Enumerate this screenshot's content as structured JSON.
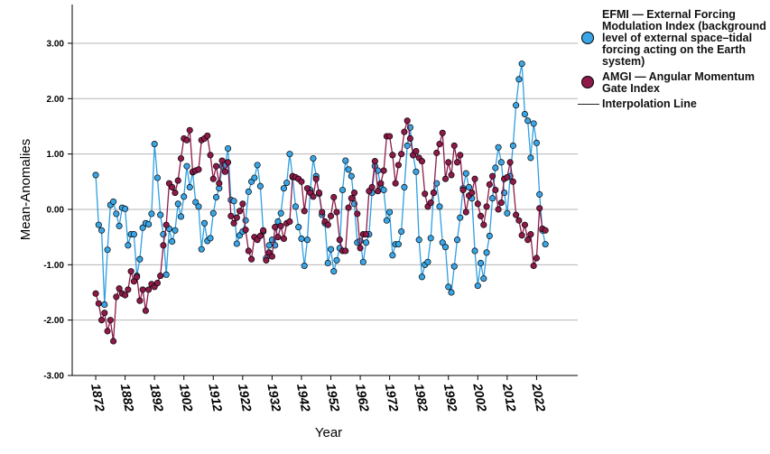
{
  "chart_data": {
    "type": "line",
    "x_label": "Year",
    "y_label": "Mean-Anomalies",
    "x": [
      1872,
      1873,
      1874,
      1875,
      1876,
      1877,
      1878,
      1879,
      1880,
      1881,
      1882,
      1883,
      1884,
      1885,
      1886,
      1887,
      1888,
      1889,
      1890,
      1891,
      1892,
      1893,
      1894,
      1895,
      1896,
      1897,
      1898,
      1899,
      1900,
      1901,
      1902,
      1903,
      1904,
      1905,
      1906,
      1907,
      1908,
      1909,
      1910,
      1911,
      1912,
      1913,
      1914,
      1915,
      1916,
      1917,
      1918,
      1919,
      1920,
      1921,
      1922,
      1923,
      1924,
      1925,
      1926,
      1927,
      1928,
      1929,
      1930,
      1931,
      1932,
      1933,
      1934,
      1935,
      1936,
      1937,
      1938,
      1939,
      1940,
      1941,
      1942,
      1943,
      1944,
      1945,
      1946,
      1947,
      1948,
      1949,
      1950,
      1951,
      1952,
      1953,
      1954,
      1955,
      1956,
      1957,
      1958,
      1959,
      1960,
      1961,
      1962,
      1963,
      1964,
      1965,
      1966,
      1967,
      1968,
      1969,
      1970,
      1971,
      1972,
      1973,
      1974,
      1975,
      1976,
      1977,
      1978,
      1979,
      1980,
      1981,
      1982,
      1983,
      1984,
      1985,
      1986,
      1987,
      1988,
      1989,
      1990,
      1991,
      1992,
      1993,
      1994,
      1995,
      1996,
      1997,
      1998,
      1999,
      2000,
      2001,
      2002,
      2003,
      2004,
      2005,
      2006,
      2007,
      2008,
      2009,
      2010,
      2011,
      2012,
      2013,
      2014,
      2015,
      2016,
      2017,
      2018,
      2019,
      2020,
      2021,
      2022,
      2023,
      2024,
      2025
    ],
    "series": [
      {
        "name": "EFMI — External Forcing Modulation Index (background level of external space–tidal forcing acting on the Earth system)",
        "color": "#3aa6e6",
        "line_color": "#2f9fe0",
        "values": [
          0.62,
          -0.28,
          -0.38,
          -1.72,
          -0.73,
          0.08,
          0.14,
          -0.08,
          -0.3,
          0.03,
          0.01,
          -0.65,
          -0.45,
          -0.45,
          -1.2,
          -0.9,
          -0.33,
          -0.25,
          -0.27,
          -0.08,
          1.18,
          0.57,
          -0.1,
          -0.45,
          -1.18,
          -0.35,
          -0.58,
          -0.38,
          0.1,
          -0.13,
          0.23,
          0.78,
          0.4,
          0.67,
          0.13,
          0.05,
          -0.72,
          -0.25,
          -0.57,
          -0.52,
          -0.07,
          0.22,
          0.38,
          0.78,
          0.8,
          1.1,
          0.17,
          0.15,
          -0.62,
          -0.47,
          -0.4,
          -0.2,
          0.32,
          0.5,
          0.57,
          0.8,
          0.42,
          -0.4,
          -0.88,
          -0.65,
          -0.55,
          -0.65,
          -0.22,
          -0.07,
          0.38,
          0.48,
          1.0,
          0.58,
          0.05,
          -0.32,
          -0.53,
          -1.02,
          -0.55,
          0.35,
          0.92,
          0.6,
          0.28,
          -0.1,
          -0.25,
          -0.97,
          -0.72,
          -1.12,
          -0.92,
          -0.7,
          0.35,
          0.88,
          0.72,
          0.6,
          0.1,
          -0.6,
          -0.57,
          -0.95,
          -0.6,
          -0.45,
          0.3,
          0.78,
          0.7,
          0.4,
          0.35,
          -0.2,
          -0.05,
          -0.83,
          -0.63,
          -0.63,
          -0.4,
          0.4,
          1.15,
          1.48,
          0.98,
          0.68,
          -0.55,
          -1.22,
          -1.0,
          -0.95,
          -0.52,
          0.3,
          0.47,
          0.05,
          -0.6,
          -0.68,
          -1.4,
          -1.5,
          -1.03,
          -0.55,
          -0.15,
          0.38,
          0.65,
          0.4,
          0.2,
          -0.75,
          -1.38,
          -0.97,
          -1.25,
          -0.78,
          -0.48,
          0.2,
          0.75,
          1.12,
          0.85,
          0.3,
          -0.07,
          0.6,
          1.15,
          1.88,
          2.35,
          2.63,
          1.72,
          1.6,
          0.93,
          1.55,
          1.2,
          0.27,
          -0.38,
          -0.63
        ]
      },
      {
        "name": "AMGI — Angular Momentum Gate Index",
        "color": "#8e1a4a",
        "line_color": "#8e1a4a",
        "values": [
          -1.52,
          -1.7,
          -2.0,
          -1.87,
          -2.2,
          -2.0,
          -2.38,
          -1.58,
          -1.43,
          -1.52,
          -1.55,
          -1.45,
          -1.12,
          -1.3,
          -1.22,
          -1.65,
          -1.45,
          -1.83,
          -1.45,
          -1.35,
          -1.4,
          -1.33,
          -1.2,
          -0.65,
          -0.28,
          0.47,
          0.4,
          0.3,
          0.52,
          0.92,
          1.28,
          1.25,
          1.43,
          0.68,
          0.7,
          0.72,
          1.25,
          1.28,
          1.33,
          0.98,
          0.55,
          0.78,
          0.47,
          0.88,
          0.68,
          0.85,
          -0.12,
          -0.25,
          -0.15,
          -0.03,
          0.1,
          -0.37,
          -0.75,
          -0.9,
          -0.5,
          -0.55,
          -0.48,
          -0.38,
          -0.92,
          -0.78,
          -0.85,
          -0.32,
          -0.5,
          -0.3,
          -0.53,
          -0.25,
          -0.22,
          0.6,
          0.58,
          0.55,
          0.5,
          -0.03,
          0.38,
          0.3,
          0.23,
          0.55,
          0.3,
          -0.05,
          -0.22,
          -0.28,
          -0.12,
          0.22,
          -0.05,
          -0.55,
          -0.75,
          -0.75,
          0.03,
          0.2,
          0.3,
          -0.08,
          -0.7,
          -0.45,
          -0.45,
          0.33,
          0.4,
          0.87,
          0.33,
          0.47,
          0.7,
          1.32,
          1.32,
          0.98,
          0.47,
          0.8,
          1.0,
          1.4,
          1.6,
          1.28,
          0.98,
          1.05,
          0.93,
          0.87,
          0.28,
          0.05,
          0.12,
          0.3,
          1.02,
          1.18,
          1.38,
          0.55,
          0.85,
          0.62,
          1.15,
          0.85,
          0.98,
          0.35,
          -0.05,
          0.25,
          0.3,
          0.55,
          0.1,
          -0.12,
          -0.28,
          0.05,
          0.45,
          0.6,
          0.35,
          0.0,
          0.12,
          0.55,
          0.58,
          0.85,
          0.5,
          -0.1,
          -0.2,
          -0.47,
          -0.28,
          -0.55,
          -0.45,
          -1.02,
          -0.88,
          0.02,
          -0.35,
          -0.38
        ]
      }
    ],
    "interpolation_label": "Interpolation Line",
    "xlim": [
      1864,
      2036
    ],
    "xticks": [
      1872,
      1882,
      1892,
      1902,
      1912,
      1922,
      1932,
      1942,
      1952,
      1962,
      1972,
      1982,
      1992,
      2002,
      2012,
      2022
    ],
    "ylim": [
      -3,
      3.7
    ],
    "yticks": [
      {
        "value": -3,
        "label": "-3.00"
      },
      {
        "value": -2,
        "label": "-2.00"
      },
      {
        "value": -1,
        "label": "-1.00"
      },
      {
        "value": 0,
        "label": "0.00"
      },
      {
        "value": 1,
        "label": "1.00"
      },
      {
        "value": 2,
        "label": "2.00"
      },
      {
        "value": 3,
        "label": "3.00"
      }
    ],
    "grid": true,
    "legend": "right"
  }
}
